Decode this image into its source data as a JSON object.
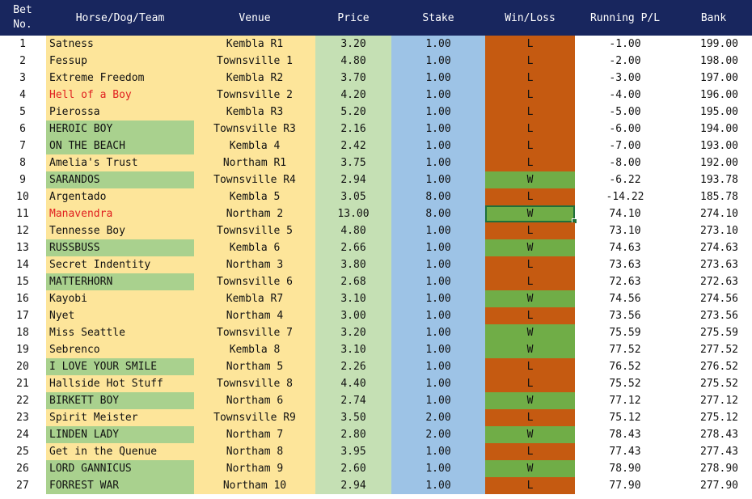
{
  "header": {
    "bet_line1": "Bet",
    "bet_line2": "No.",
    "horse": "Horse/Dog/Team",
    "venue": "Venue",
    "price": "Price",
    "stake": "Stake",
    "winloss": "Win/Loss",
    "pl": "Running P/L",
    "bank": "Bank"
  },
  "colors": {
    "header_bg": "#18265e",
    "name_bg": "#fde59a",
    "name_alt_bg": "#a9d18e",
    "price_bg": "#c5e0b4",
    "stake_bg": "#9dc3e6",
    "loss_bg": "#c55a11",
    "win_bg": "#70ad47",
    "red_text": "#e02020"
  },
  "rows": [
    {
      "no": "1",
      "horse": "Satness",
      "venue": "Kembla R1",
      "price": "3.20",
      "stake": "1.00",
      "result": "L",
      "pl": "-1.00",
      "bank": "199.00",
      "style": "normal"
    },
    {
      "no": "2",
      "horse": "Fessup",
      "venue": "Townsville 1",
      "price": "4.80",
      "stake": "1.00",
      "result": "L",
      "pl": "-2.00",
      "bank": "198.00",
      "style": "normal"
    },
    {
      "no": "3",
      "horse": "Extreme Freedom",
      "venue": "Kembla R2",
      "price": "3.70",
      "stake": "1.00",
      "result": "L",
      "pl": "-3.00",
      "bank": "197.00",
      "style": "normal"
    },
    {
      "no": "4",
      "horse": "Hell of a Boy",
      "venue": "Townsville 2",
      "price": "4.20",
      "stake": "1.00",
      "result": "L",
      "pl": "-4.00",
      "bank": "196.00",
      "style": "red"
    },
    {
      "no": "5",
      "horse": "Pierossa",
      "venue": "Kembla R3",
      "price": "5.20",
      "stake": "1.00",
      "result": "L",
      "pl": "-5.00",
      "bank": "195.00",
      "style": "normal"
    },
    {
      "no": "6",
      "horse": "HEROIC BOY",
      "venue": "Townsville R3",
      "price": "2.16",
      "stake": "1.00",
      "result": "L",
      "pl": "-6.00",
      "bank": "194.00",
      "style": "upper"
    },
    {
      "no": "7",
      "horse": "ON THE BEACH",
      "venue": "Kembla 4",
      "price": "2.42",
      "stake": "1.00",
      "result": "L",
      "pl": "-7.00",
      "bank": "193.00",
      "style": "upper"
    },
    {
      "no": "8",
      "horse": "Amelia's Trust",
      "venue": "Northam R1",
      "price": "3.75",
      "stake": "1.00",
      "result": "L",
      "pl": "-8.00",
      "bank": "192.00",
      "style": "normal"
    },
    {
      "no": "9",
      "horse": "SARANDOS",
      "venue": "Townsville R4",
      "price": "2.94",
      "stake": "1.00",
      "result": "W",
      "pl": "-6.22",
      "bank": "193.78",
      "style": "upper"
    },
    {
      "no": "10",
      "horse": "Argentado",
      "venue": "Kembla 5",
      "price": "3.05",
      "stake": "8.00",
      "result": "L",
      "pl": "-14.22",
      "bank": "185.78",
      "style": "normal"
    },
    {
      "no": "11",
      "horse": "Manavendra",
      "venue": "Northam 2",
      "price": "13.00",
      "stake": "8.00",
      "result": "W",
      "pl": "74.10",
      "bank": "274.10",
      "style": "red",
      "selected": true
    },
    {
      "no": "12",
      "horse": "Tennesse Boy",
      "venue": "Townsville 5",
      "price": "4.80",
      "stake": "1.00",
      "result": "L",
      "pl": "73.10",
      "bank": "273.10",
      "style": "normal"
    },
    {
      "no": "13",
      "horse": "RUSSBUSS",
      "venue": "Kembla 6",
      "price": "2.66",
      "stake": "1.00",
      "result": "W",
      "pl": "74.63",
      "bank": "274.63",
      "style": "upper"
    },
    {
      "no": "14",
      "horse": "Secret Indentity",
      "venue": "Northam 3",
      "price": "3.80",
      "stake": "1.00",
      "result": "L",
      "pl": "73.63",
      "bank": "273.63",
      "style": "normal"
    },
    {
      "no": "15",
      "horse": "MATTERHORN",
      "venue": "Townsville 6",
      "price": "2.68",
      "stake": "1.00",
      "result": "L",
      "pl": "72.63",
      "bank": "272.63",
      "style": "upper"
    },
    {
      "no": "16",
      "horse": "Kayobi",
      "venue": "Kembla R7",
      "price": "3.10",
      "stake": "1.00",
      "result": "W",
      "pl": "74.56",
      "bank": "274.56",
      "style": "normal"
    },
    {
      "no": "17",
      "horse": "Nyet",
      "venue": "Northam 4",
      "price": "3.00",
      "stake": "1.00",
      "result": "L",
      "pl": "73.56",
      "bank": "273.56",
      "style": "normal"
    },
    {
      "no": "18",
      "horse": "Miss Seattle",
      "venue": "Townsville 7",
      "price": "3.20",
      "stake": "1.00",
      "result": "W",
      "pl": "75.59",
      "bank": "275.59",
      "style": "normal"
    },
    {
      "no": "19",
      "horse": "Sebrenco",
      "venue": "Kembla 8",
      "price": "3.10",
      "stake": "1.00",
      "result": "W",
      "pl": "77.52",
      "bank": "277.52",
      "style": "normal"
    },
    {
      "no": "20",
      "horse": "I LOVE YOUR SMILE",
      "venue": "Northam 5",
      "price": "2.26",
      "stake": "1.00",
      "result": "L",
      "pl": "76.52",
      "bank": "276.52",
      "style": "upper"
    },
    {
      "no": "21",
      "horse": "Hallside Hot Stuff",
      "venue": "Townsville 8",
      "price": "4.40",
      "stake": "1.00",
      "result": "L",
      "pl": "75.52",
      "bank": "275.52",
      "style": "normal"
    },
    {
      "no": "22",
      "horse": "BIRKETT BOY",
      "venue": "Northam 6",
      "price": "2.74",
      "stake": "1.00",
      "result": "W",
      "pl": "77.12",
      "bank": "277.12",
      "style": "upper"
    },
    {
      "no": "23",
      "horse": "Spirit Meister",
      "venue": "Townsville R9",
      "price": "3.50",
      "stake": "2.00",
      "result": "L",
      "pl": "75.12",
      "bank": "275.12",
      "style": "normal"
    },
    {
      "no": "24",
      "horse": "LINDEN LADY",
      "venue": "Northam 7",
      "price": "2.80",
      "stake": "2.00",
      "result": "W",
      "pl": "78.43",
      "bank": "278.43",
      "style": "upper"
    },
    {
      "no": "25",
      "horse": "Get in the Quenue",
      "venue": "Northam 8",
      "price": "3.95",
      "stake": "1.00",
      "result": "L",
      "pl": "77.43",
      "bank": "277.43",
      "style": "normal"
    },
    {
      "no": "26",
      "horse": "LORD GANNICUS",
      "venue": "Northam 9",
      "price": "2.60",
      "stake": "1.00",
      "result": "W",
      "pl": "78.90",
      "bank": "278.90",
      "style": "upper"
    },
    {
      "no": "27",
      "horse": "FORREST WAR",
      "venue": "Northam 10",
      "price": "2.94",
      "stake": "1.00",
      "result": "L",
      "pl": "77.90",
      "bank": "277.90",
      "style": "upper"
    }
  ]
}
